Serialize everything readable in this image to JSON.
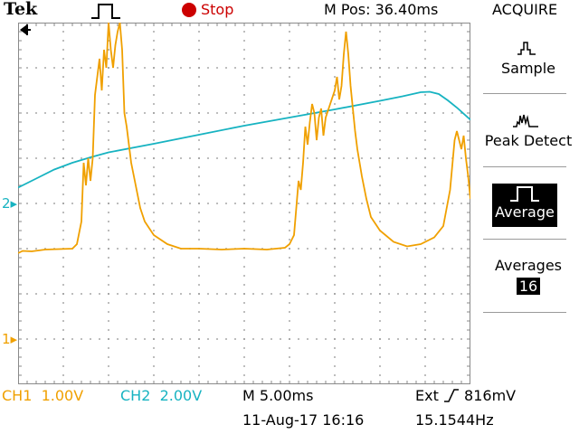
{
  "header": {
    "brand": "Tek",
    "run_state": "Stop",
    "m_pos": "M Pos: 36.40ms",
    "menu_title": "ACQUIRE",
    "icons": {
      "trigger": "pulse-trigger-icon",
      "run": "stop-dot-icon"
    }
  },
  "menu": {
    "sample_label": "Sample",
    "peak_label": "Peak Detect",
    "average_label": "Average",
    "averages_label": "Averages",
    "averages_value": "16"
  },
  "markers": {
    "ch1": "1",
    "ch2": "2"
  },
  "footer": {
    "ch1_label": "CH1",
    "ch1_scale": "1.00V",
    "ch2_label": "CH2",
    "ch2_scale": "2.00V",
    "timebase": "M 5.00ms",
    "trigger": "Ext",
    "trigger_level": "816mV",
    "datetime": "11-Aug-17 16:16",
    "frequency": "15.1544Hz"
  },
  "colors": {
    "ch1": "#f0a000",
    "ch2": "#17b3c1",
    "grid": "#8a8a8a",
    "stop": "#cc0000"
  },
  "chart_data": {
    "type": "line",
    "title": "",
    "xlabel": "",
    "ylabel": "",
    "x_divisions": 10,
    "y_divisions": 8,
    "grid": true,
    "series": [
      {
        "name": "CH1",
        "color": "#f0a000",
        "points": [
          [
            0,
            -1.1
          ],
          [
            0.1,
            -1.05
          ],
          [
            0.3,
            -1.06
          ],
          [
            0.6,
            -1.02
          ],
          [
            1.2,
            -1.0
          ],
          [
            1.3,
            -0.9
          ],
          [
            1.4,
            -0.4
          ],
          [
            1.45,
            0.9
          ],
          [
            1.5,
            0.4
          ],
          [
            1.55,
            1.0
          ],
          [
            1.6,
            0.5
          ],
          [
            1.65,
            1.0
          ],
          [
            1.7,
            2.4
          ],
          [
            1.75,
            2.8
          ],
          [
            1.8,
            3.2
          ],
          [
            1.85,
            2.5
          ],
          [
            1.9,
            3.4
          ],
          [
            1.95,
            3.0
          ],
          [
            2.0,
            4.0
          ],
          [
            2.05,
            3.4
          ],
          [
            2.1,
            3.0
          ],
          [
            2.15,
            3.5
          ],
          [
            2.2,
            3.8
          ],
          [
            2.25,
            4.0
          ],
          [
            2.3,
            3.4
          ],
          [
            2.35,
            2.0
          ],
          [
            2.4,
            1.7
          ],
          [
            2.5,
            0.9
          ],
          [
            2.6,
            0.4
          ],
          [
            2.7,
            -0.1
          ],
          [
            2.8,
            -0.4
          ],
          [
            3.0,
            -0.7
          ],
          [
            3.3,
            -0.9
          ],
          [
            3.6,
            -1.0
          ],
          [
            4.0,
            -1.0
          ],
          [
            4.5,
            -1.02
          ],
          [
            5.0,
            -1.0
          ],
          [
            5.5,
            -1.02
          ],
          [
            5.9,
            -0.98
          ],
          [
            6.0,
            -0.9
          ],
          [
            6.1,
            -0.7
          ],
          [
            6.2,
            0.5
          ],
          [
            6.25,
            0.3
          ],
          [
            6.3,
            0.9
          ],
          [
            6.35,
            1.7
          ],
          [
            6.4,
            1.3
          ],
          [
            6.45,
            1.8
          ],
          [
            6.5,
            2.2
          ],
          [
            6.55,
            2.0
          ],
          [
            6.6,
            1.4
          ],
          [
            6.65,
            1.9
          ],
          [
            6.7,
            2.1
          ],
          [
            6.75,
            1.5
          ],
          [
            6.8,
            1.9
          ],
          [
            6.9,
            2.2
          ],
          [
            7.0,
            2.5
          ],
          [
            7.05,
            2.8
          ],
          [
            7.1,
            2.3
          ],
          [
            7.15,
            2.6
          ],
          [
            7.2,
            3.3
          ],
          [
            7.25,
            3.8
          ],
          [
            7.3,
            3.3
          ],
          [
            7.35,
            2.6
          ],
          [
            7.4,
            2.1
          ],
          [
            7.45,
            1.6
          ],
          [
            7.5,
            1.2
          ],
          [
            7.6,
            0.6
          ],
          [
            7.7,
            0.1
          ],
          [
            7.8,
            -0.3
          ],
          [
            8.0,
            -0.6
          ],
          [
            8.3,
            -0.85
          ],
          [
            8.6,
            -0.95
          ],
          [
            8.9,
            -0.9
          ],
          [
            9.2,
            -0.75
          ],
          [
            9.4,
            -0.5
          ],
          [
            9.55,
            0.3
          ],
          [
            9.65,
            1.4
          ],
          [
            9.7,
            1.6
          ],
          [
            9.75,
            1.4
          ],
          [
            9.8,
            1.2
          ],
          [
            9.85,
            1.5
          ],
          [
            9.9,
            1.0
          ],
          [
            9.95,
            0.6
          ],
          [
            10.0,
            0.1
          ]
        ]
      },
      {
        "name": "CH2",
        "color": "#17b3c1",
        "points": [
          [
            0,
            0.35
          ],
          [
            0.4,
            0.55
          ],
          [
            0.8,
            0.75
          ],
          [
            1.2,
            0.9
          ],
          [
            1.6,
            1.02
          ],
          [
            2.0,
            1.13
          ],
          [
            3.0,
            1.32
          ],
          [
            4.0,
            1.52
          ],
          [
            5.0,
            1.72
          ],
          [
            6.0,
            1.9
          ],
          [
            7.0,
            2.08
          ],
          [
            8.0,
            2.27
          ],
          [
            8.5,
            2.37
          ],
          [
            8.9,
            2.46
          ],
          [
            9.1,
            2.47
          ],
          [
            9.3,
            2.42
          ],
          [
            9.5,
            2.28
          ],
          [
            9.7,
            2.12
          ],
          [
            10.0,
            1.85
          ]
        ]
      }
    ]
  }
}
